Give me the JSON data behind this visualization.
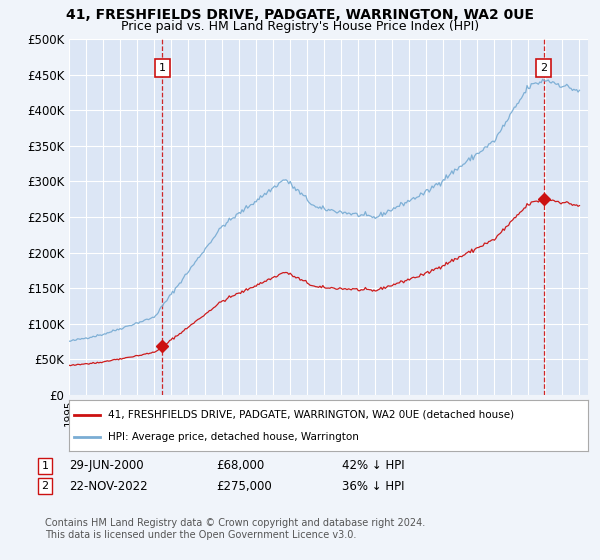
{
  "title": "41, FRESHFIELDS DRIVE, PADGATE, WARRINGTON, WA2 0UE",
  "subtitle": "Price paid vs. HM Land Registry's House Price Index (HPI)",
  "background_color": "#f0f4fa",
  "plot_bg_color": "#dce6f5",
  "hpi_color": "#7aadd4",
  "price_color": "#cc1111",
  "dashed_line_color": "#cc1111",
  "ylim": [
    0,
    500000
  ],
  "yticks": [
    0,
    50000,
    100000,
    150000,
    200000,
    250000,
    300000,
    350000,
    400000,
    450000,
    500000
  ],
  "ytick_labels": [
    "£0",
    "£50K",
    "£100K",
    "£150K",
    "£200K",
    "£250K",
    "£300K",
    "£350K",
    "£400K",
    "£450K",
    "£500K"
  ],
  "xlim_start": 1995.0,
  "xlim_end": 2025.5,
  "sale1_date": 2000.49,
  "sale1_price": 68000,
  "sale1_label": "1",
  "sale2_date": 2022.9,
  "sale2_price": 275000,
  "sale2_label": "2",
  "legend_line1": "41, FRESHFIELDS DRIVE, PADGATE, WARRINGTON, WA2 0UE (detached house)",
  "legend_line2": "HPI: Average price, detached house, Warrington",
  "footnote": "Contains HM Land Registry data © Crown copyright and database right 2024.\nThis data is licensed under the Open Government Licence v3.0.",
  "grid_color": "#ffffff",
  "title_fontsize": 10,
  "subtitle_fontsize": 9
}
